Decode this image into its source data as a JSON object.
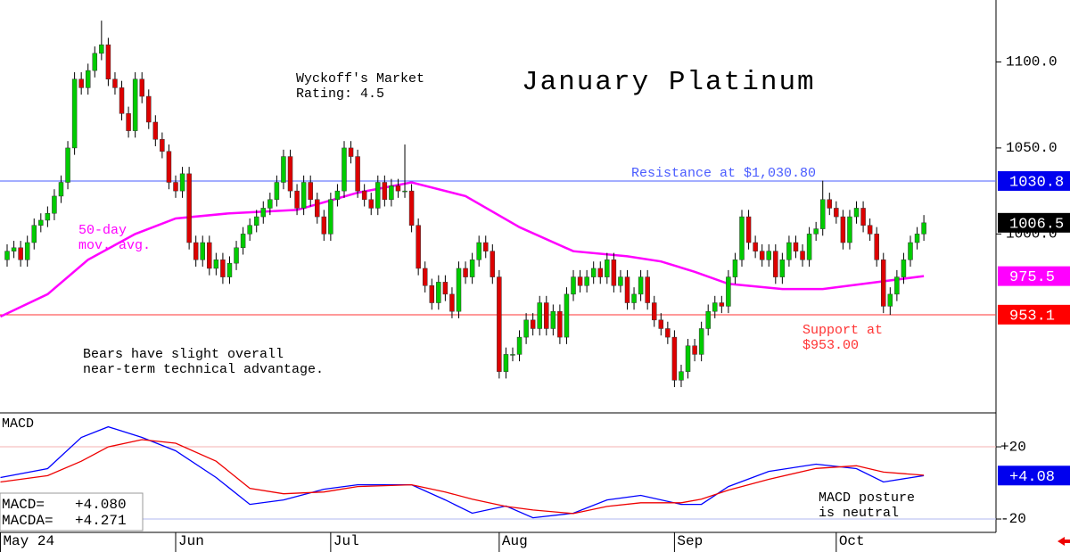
{
  "chart_data": [
    {
      "type": "candlestick",
      "title": "January Platinum",
      "annotations": [
        {
          "lines": [
            "Wyckoff's Market",
            "Rating: 4.5"
          ],
          "color": "#000000"
        },
        {
          "lines": [
            "50-day",
            "mov. avg."
          ],
          "color": "#ff00ff"
        },
        {
          "lines": [
            "Bears have slight overall",
            "near-term technical advantage."
          ],
          "color": "#000000"
        }
      ],
      "x": [
        0,
        1,
        2,
        3,
        4,
        5,
        6,
        7,
        8,
        9,
        10,
        11,
        12,
        13,
        14,
        15,
        16,
        17,
        18,
        19,
        20,
        21,
        22,
        23,
        24,
        25,
        26,
        27,
        28,
        29,
        30,
        31,
        32,
        33,
        34,
        35,
        36,
        37,
        38,
        39,
        40,
        41,
        42,
        43,
        44,
        45,
        46,
        47,
        48,
        49,
        50,
        51,
        52,
        53,
        54,
        55,
        56,
        57,
        58,
        59,
        60,
        61,
        62,
        63,
        64,
        65,
        66,
        67,
        68,
        69,
        70,
        71,
        72,
        73,
        74,
        75,
        76,
        77,
        78,
        79,
        80,
        81,
        82,
        83,
        84,
        85,
        86,
        87,
        88,
        89,
        90,
        91,
        92,
        93,
        94,
        95,
        96,
        97,
        98,
        99,
        100,
        101,
        102,
        103,
        104,
        105,
        106,
        107,
        108,
        109,
        110,
        111,
        112,
        113,
        114,
        115,
        116,
        117,
        118,
        119,
        120,
        121,
        122,
        123,
        124,
        125,
        126,
        127,
        128,
        129,
        130,
        131,
        132,
        133,
        134,
        135,
        136
      ],
      "open": [
        985,
        990,
        992,
        985,
        995,
        1005,
        1008,
        1012,
        1022,
        1030,
        1050,
        1090,
        1085,
        1095,
        1105,
        1110,
        1090,
        1085,
        1070,
        1060,
        1090,
        1080,
        1065,
        1055,
        1048,
        1030,
        1025,
        1035,
        995,
        985,
        995,
        980,
        985,
        975,
        983,
        992,
        1000,
        1005,
        1010,
        1015,
        1020,
        1030,
        1045,
        1025,
        1015,
        1030,
        1020,
        1010,
        1000,
        1020,
        1025,
        1050,
        1045,
        1025,
        1020,
        1015,
        1030,
        1020,
        1028,
        1025,
        1025,
        1005,
        980,
        970,
        960,
        972,
        965,
        955,
        980,
        975,
        985,
        995,
        990,
        975,
        920,
        930,
        930,
        940,
        950,
        945,
        960,
        945,
        955,
        940,
        965,
        975,
        970,
        975,
        980,
        975,
        985,
        970,
        975,
        960,
        965,
        975,
        960,
        950,
        945,
        940,
        915,
        920,
        935,
        930,
        945,
        955,
        960,
        958,
        975,
        985,
        1010,
        995,
        990,
        985,
        990,
        975,
        985,
        995,
        990,
        985,
        1000,
        1003,
        1020,
        1015,
        1010,
        995,
        1010,
        1015,
        1005,
        1000,
        985,
        958,
        965,
        975,
        985,
        995,
        1000
      ],
      "high": [
        994,
        996,
        996,
        999,
        1009,
        1012,
        1016,
        1026,
        1034,
        1054,
        1094,
        1094,
        1099,
        1109,
        1124,
        1114,
        1094,
        1089,
        1074,
        1094,
        1094,
        1084,
        1069,
        1059,
        1052,
        1034,
        1039,
        1039,
        999,
        999,
        999,
        989,
        989,
        987,
        996,
        1004,
        1009,
        1014,
        1019,
        1024,
        1034,
        1049,
        1049,
        1029,
        1034,
        1034,
        1024,
        1014,
        1024,
        1029,
        1054,
        1054,
        1049,
        1029,
        1024,
        1034,
        1034,
        1032,
        1032,
        1052,
        1029,
        1009,
        984,
        974,
        976,
        976,
        969,
        984,
        984,
        989,
        999,
        999,
        994,
        979,
        934,
        934,
        944,
        954,
        954,
        964,
        964,
        959,
        959,
        969,
        979,
        979,
        979,
        984,
        984,
        989,
        989,
        979,
        979,
        969,
        979,
        979,
        964,
        954,
        949,
        944,
        924,
        939,
        939,
        949,
        959,
        964,
        964,
        979,
        989,
        1014,
        1014,
        999,
        994,
        994,
        994,
        989,
        999,
        999,
        994,
        1004,
        1007,
        1031,
        1024,
        1019,
        1014,
        1014,
        1019,
        1019,
        1009,
        1004,
        989,
        969,
        979,
        989,
        999,
        1004,
        1011
      ],
      "low": [
        981,
        986,
        981,
        981,
        991,
        1001,
        1004,
        1008,
        1018,
        1026,
        1046,
        1081,
        1081,
        1091,
        1101,
        1086,
        1081,
        1066,
        1056,
        1056,
        1076,
        1061,
        1051,
        1044,
        1026,
        1021,
        1021,
        991,
        981,
        981,
        976,
        976,
        971,
        971,
        979,
        988,
        996,
        1001,
        1006,
        1011,
        1016,
        1026,
        1021,
        1011,
        1011,
        1016,
        1006,
        996,
        996,
        1016,
        1021,
        1041,
        1021,
        1016,
        1011,
        1011,
        1016,
        1016,
        1021,
        1021,
        1001,
        976,
        966,
        956,
        956,
        961,
        951,
        951,
        971,
        971,
        981,
        986,
        971,
        916,
        916,
        926,
        926,
        936,
        941,
        941,
        941,
        941,
        936,
        936,
        961,
        966,
        966,
        971,
        971,
        971,
        966,
        966,
        956,
        956,
        961,
        956,
        946,
        941,
        936,
        911,
        911,
        916,
        926,
        926,
        941,
        951,
        954,
        954,
        971,
        981,
        991,
        986,
        981,
        981,
        971,
        971,
        981,
        986,
        981,
        981,
        996,
        999,
        1011,
        1006,
        991,
        991,
        1006,
        1001,
        996,
        981,
        954,
        953,
        961,
        971,
        981,
        991,
        996
      ],
      "close": [
        990,
        992,
        985,
        995,
        1005,
        1008,
        1012,
        1022,
        1030,
        1050,
        1090,
        1085,
        1095,
        1105,
        1110,
        1090,
        1085,
        1070,
        1060,
        1090,
        1080,
        1065,
        1055,
        1048,
        1030,
        1025,
        1035,
        995,
        985,
        995,
        980,
        985,
        975,
        983,
        992,
        1000,
        1005,
        1010,
        1015,
        1020,
        1030,
        1045,
        1025,
        1015,
        1030,
        1020,
        1010,
        1000,
        1020,
        1025,
        1050,
        1045,
        1025,
        1020,
        1015,
        1030,
        1020,
        1028,
        1025,
        1025,
        1005,
        980,
        970,
        960,
        972,
        965,
        955,
        980,
        975,
        985,
        995,
        990,
        975,
        920,
        930,
        930,
        940,
        950,
        945,
        960,
        945,
        955,
        940,
        965,
        975,
        970,
        975,
        980,
        975,
        985,
        970,
        975,
        960,
        965,
        975,
        960,
        950,
        945,
        940,
        915,
        920,
        935,
        930,
        945,
        955,
        960,
        958,
        975,
        985,
        1010,
        995,
        990,
        985,
        990,
        975,
        985,
        995,
        990,
        985,
        1000,
        1003,
        1020,
        1015,
        1010,
        995,
        1010,
        1015,
        1005,
        1000,
        985,
        958,
        965,
        975,
        985,
        995,
        1000,
        1006.5
      ],
      "up_color": "#00cc00",
      "down_color": "#dd0000",
      "moving_average": {
        "color": "#ff00ff",
        "x": [
          -1,
          6,
          12,
          19,
          25,
          33,
          43,
          52,
          60,
          68,
          76,
          84,
          92,
          97,
          102,
          107,
          115,
          121,
          129,
          136
        ],
        "values": [
          952,
          965,
          985,
          1000,
          1009,
          1012,
          1014,
          1024,
          1030,
          1022,
          1004,
          990,
          987,
          984,
          978,
          971,
          968,
          968,
          972,
          975.5
        ]
      },
      "hlines": [
        {
          "value": 1030.8,
          "color": "#4a5cff",
          "lines": [
            "Resistance at $1,030.80"
          ]
        },
        {
          "value": 953,
          "color": "#ff3333",
          "lines": [
            "Support at",
            "$953.00"
          ]
        }
      ],
      "price_markers": [
        {
          "value": 1030.8,
          "color": "#0000ee"
        },
        {
          "value": 1006.5,
          "color": "#000000"
        },
        {
          "value": 975.5,
          "color": "#ff00ff"
        },
        {
          "value": 953.1,
          "color": "#ff0000"
        }
      ],
      "xlim": [
        -1.06,
        146.7
      ],
      "ylim": [
        896,
        1136
      ],
      "yticks": [
        {
          "value": 1100,
          "label": "1100.0"
        },
        {
          "value": 1050,
          "label": "1050.0"
        },
        {
          "value": 1000,
          "label": "1000.0"
        }
      ]
    },
    {
      "type": "line",
      "title": "MACD",
      "annotations": [
        {
          "lines": [
            "MACD posture",
            "is neutral"
          ],
          "color": "#000000"
        }
      ],
      "x": [
        -1,
        6,
        11,
        15,
        20,
        25,
        31,
        36,
        41,
        47,
        52,
        60,
        65,
        69,
        74,
        78,
        84,
        89,
        94,
        100,
        103,
        107,
        113,
        120,
        126,
        130,
        136
      ],
      "series": [
        {
          "name": "MACD=",
          "color": "#0000ff",
          "last_label": "+4.080",
          "values": [
            3,
            7.9,
            25.2,
            31.1,
            25.2,
            17.8,
            3,
            -11.9,
            -9.4,
            -3.5,
            -1,
            -1,
            -9.4,
            -16.8,
            -12.8,
            -19.3,
            -16.8,
            -9.4,
            -6.9,
            -11.9,
            -11.9,
            -2,
            6.4,
            10.4,
            7.9,
            0.5,
            4.08
          ]
        },
        {
          "name": "MACDA=",
          "color": "#ee0000",
          "last_label": "+4.271",
          "values": [
            0.5,
            4,
            12,
            20,
            24,
            22,
            12,
            -3,
            -6,
            -5,
            -2,
            -1,
            -5,
            -9,
            -13,
            -15,
            -17,
            -13,
            -11,
            -11,
            -9,
            -4,
            2,
            8,
            9.5,
            6,
            4.271
          ]
        }
      ],
      "marker": {
        "value": 4.08,
        "label": "+4.08",
        "color": "#0000ee"
      },
      "xlim": [
        -1.06,
        146.7
      ],
      "ylim": [
        -27.4,
        38.8
      ],
      "yticks": [
        {
          "value": 20,
          "label": "+20"
        },
        {
          "value": -20,
          "label": "-20"
        }
      ],
      "xticks": [
        {
          "value": -1,
          "label": "May 24"
        },
        {
          "value": 25,
          "label": "Jun"
        },
        {
          "value": 48,
          "label": "Jul"
        },
        {
          "value": 73,
          "label": "Aug"
        },
        {
          "value": 99,
          "label": "Sep"
        },
        {
          "value": 123,
          "label": "Oct"
        }
      ]
    }
  ]
}
